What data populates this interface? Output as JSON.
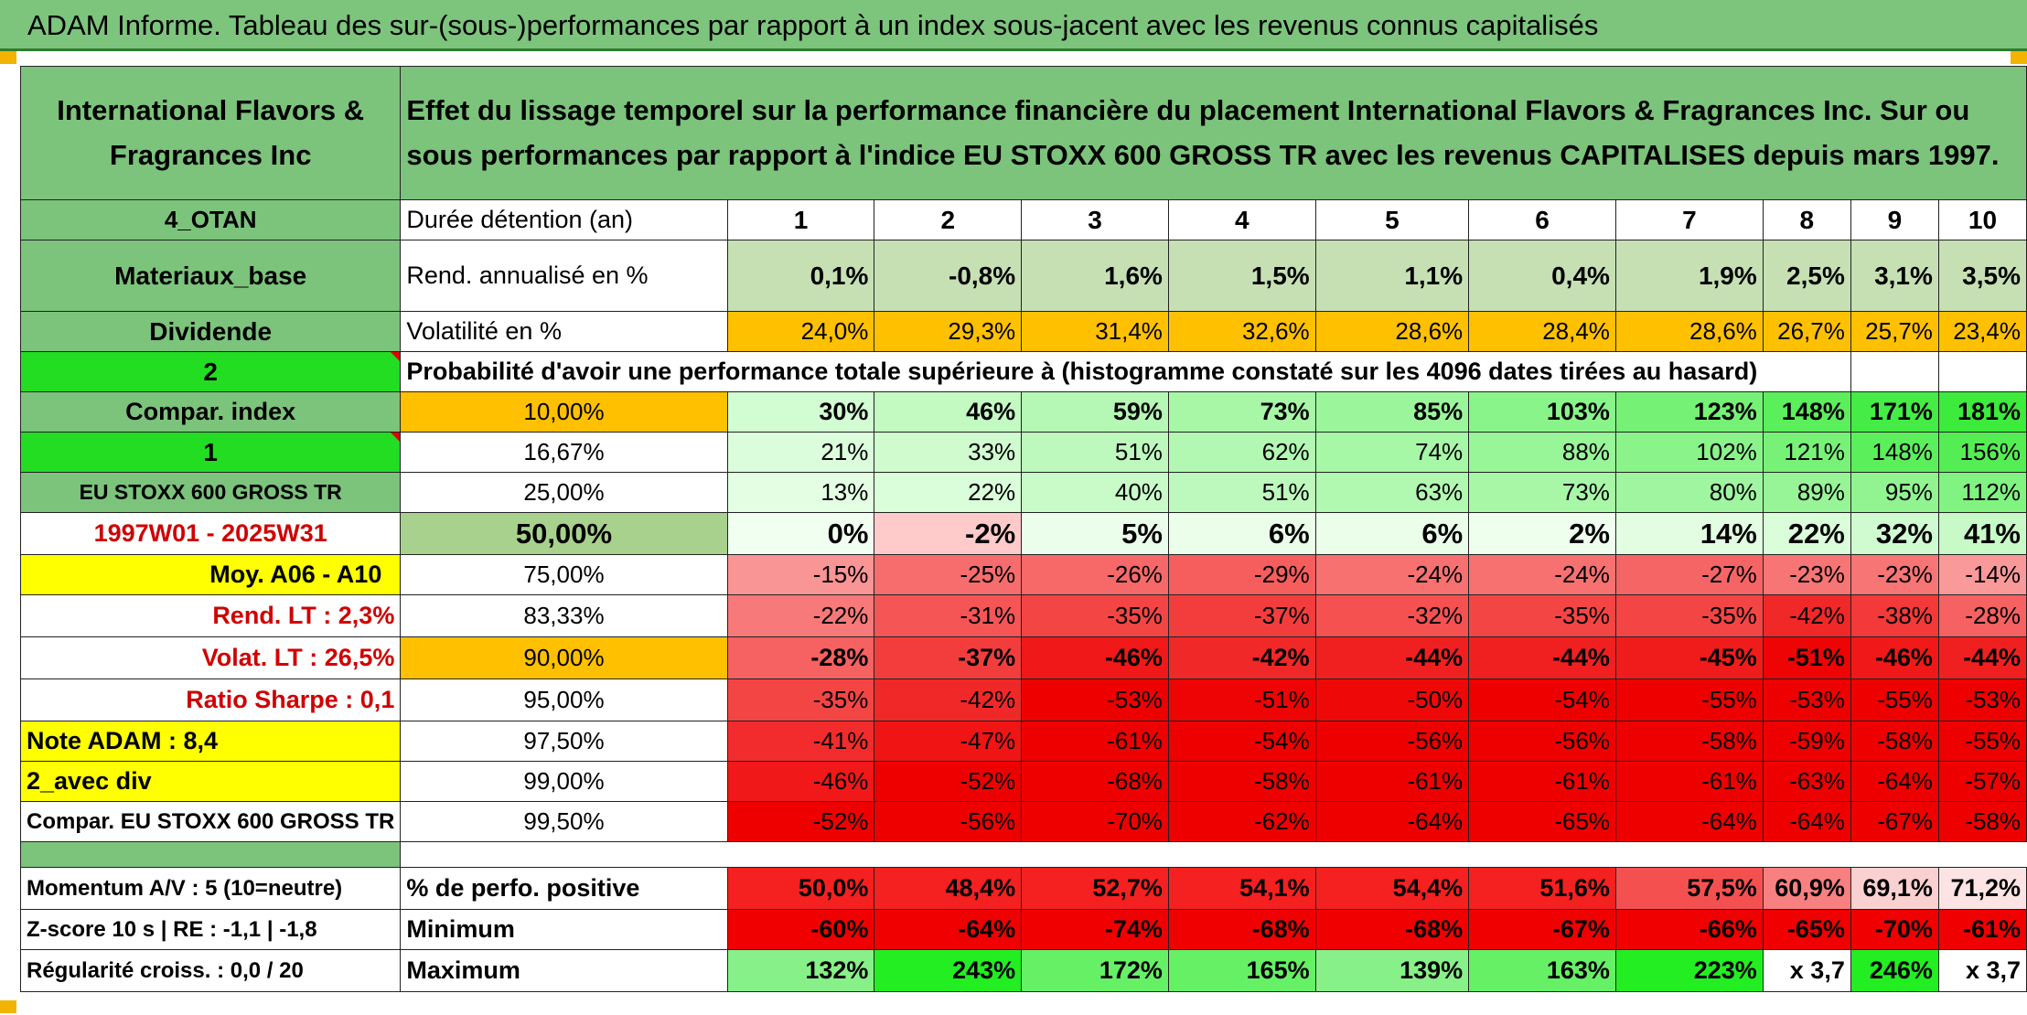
{
  "title": "ADAM Informe. Tableau des sur-(sous-)performances par rapport à un index sous-jacent avec les revenus connus capitalisés",
  "header": {
    "asset_name": "International Flavors & Fragrances Inc",
    "description": "Effet du lissage temporel sur la performance financière du placement International Flavors & Fragrances Inc. Sur ou sous performances par rapport à l'indice EU STOXX 600 GROSS TR avec les revenus CAPITALISES depuis mars 1997."
  },
  "left": {
    "code": "4_OTAN",
    "sector": "Materiaux_base",
    "dividend_label": "Dividende",
    "n2": "2",
    "compar_index_label": "Compar. index",
    "n1": "1",
    "index_name": "EU STOXX 600 GROSS TR",
    "period": "1997W01 - 2025W31",
    "moy": "Moy. A06 - A10",
    "rend_lt": "Rend. LT :   2,3%",
    "volat_lt": "Volat. LT :   26,5%",
    "sharpe": "Ratio Sharpe :   0,1",
    "note": "Note ADAM : 8,4",
    "avec_div": "2_avec div",
    "compar_full": "Compar. EU STOXX 600 GROSS TR",
    "momentum": "Momentum A/V : 5 (10=neutre)",
    "zscore": "Z-score 10 s | RE : -1,1 | -1,8",
    "regularite": "Régularité croiss. : 0,0 / 20"
  },
  "labels": {
    "duree": "Durée détention (an)",
    "rend": "Rend. annualisé en %",
    "volat": "Volatilité en %",
    "proba": "Probabilité d'avoir une performance totale supérieure à (histogramme constaté sur les 4096 dates tirées au hasard)",
    "pos": "% de perfo. positive",
    "min": "Minimum",
    "max": "Maximum"
  },
  "years": [
    "1",
    "2",
    "3",
    "4",
    "5",
    "6",
    "7",
    "8",
    "9",
    "10"
  ],
  "rend": [
    "0,1%",
    "-0,8%",
    "1,6%",
    "1,5%",
    "1,1%",
    "0,4%",
    "1,9%",
    "2,5%",
    "3,1%",
    "3,5%"
  ],
  "volat": [
    "24,0%",
    "29,3%",
    "31,4%",
    "32,6%",
    "28,6%",
    "28,4%",
    "28,6%",
    "26,7%",
    "25,7%",
    "23,4%"
  ],
  "prob_rows": [
    {
      "pct": "10,00%",
      "values": [
        "30%",
        "46%",
        "59%",
        "73%",
        "85%",
        "103%",
        "123%",
        "148%",
        "171%",
        "181%"
      ]
    },
    {
      "pct": "16,67%",
      "values": [
        "21%",
        "33%",
        "51%",
        "62%",
        "74%",
        "88%",
        "102%",
        "121%",
        "148%",
        "156%"
      ]
    },
    {
      "pct": "25,00%",
      "values": [
        "13%",
        "22%",
        "40%",
        "51%",
        "63%",
        "73%",
        "80%",
        "89%",
        "95%",
        "112%"
      ]
    },
    {
      "pct": "50,00%",
      "values": [
        "0%",
        "-2%",
        "5%",
        "6%",
        "6%",
        "2%",
        "14%",
        "22%",
        "32%",
        "41%"
      ]
    },
    {
      "pct": "75,00%",
      "values": [
        "-15%",
        "-25%",
        "-26%",
        "-29%",
        "-24%",
        "-24%",
        "-27%",
        "-23%",
        "-23%",
        "-14%"
      ]
    },
    {
      "pct": "83,33%",
      "values": [
        "-22%",
        "-31%",
        "-35%",
        "-37%",
        "-32%",
        "-35%",
        "-35%",
        "-42%",
        "-38%",
        "-28%"
      ]
    },
    {
      "pct": "90,00%",
      "values": [
        "-28%",
        "-37%",
        "-46%",
        "-42%",
        "-44%",
        "-44%",
        "-45%",
        "-51%",
        "-46%",
        "-44%"
      ]
    },
    {
      "pct": "95,00%",
      "values": [
        "-35%",
        "-42%",
        "-53%",
        "-51%",
        "-50%",
        "-54%",
        "-55%",
        "-53%",
        "-55%",
        "-53%"
      ]
    },
    {
      "pct": "97,50%",
      "values": [
        "-41%",
        "-47%",
        "-61%",
        "-54%",
        "-56%",
        "-56%",
        "-58%",
        "-59%",
        "-58%",
        "-55%"
      ]
    },
    {
      "pct": "99,00%",
      "values": [
        "-46%",
        "-52%",
        "-68%",
        "-58%",
        "-61%",
        "-61%",
        "-61%",
        "-63%",
        "-64%",
        "-57%"
      ]
    },
    {
      "pct": "99,50%",
      "values": [
        "-52%",
        "-56%",
        "-70%",
        "-62%",
        "-64%",
        "-65%",
        "-64%",
        "-64%",
        "-67%",
        "-58%"
      ]
    }
  ],
  "pos": [
    "50,0%",
    "48,4%",
    "52,7%",
    "54,1%",
    "54,4%",
    "51,6%",
    "57,5%",
    "60,9%",
    "69,1%",
    "71,2%"
  ],
  "min": [
    "-60%",
    "-64%",
    "-74%",
    "-68%",
    "-68%",
    "-67%",
    "-66%",
    "-65%",
    "-70%",
    "-61%"
  ],
  "max": [
    "132%",
    "243%",
    "172%",
    "165%",
    "139%",
    "163%",
    "223%",
    "x 3,7",
    "246%",
    "x 3,7"
  ],
  "colors": {
    "title_bg": "#7dc47d",
    "label_green": "#7cc37c",
    "bright_green": "#22dd22",
    "yellow": "#ffff00",
    "orange": "#ffc000",
    "rend_green": "#c6e0b4",
    "red_text": "#d00000"
  }
}
